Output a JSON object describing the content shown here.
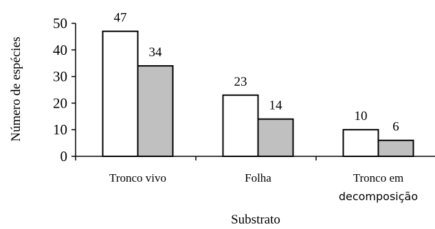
{
  "chart_data": {
    "type": "bar",
    "title": "",
    "xlabel": "Substrato",
    "ylabel": "Número de espécies",
    "ylim": [
      0,
      50
    ],
    "yticks": [
      0,
      10,
      20,
      30,
      40,
      50
    ],
    "categories": [
      {
        "lines": [
          "Tronco vivo"
        ]
      },
      {
        "lines": [
          "Folha"
        ]
      },
      {
        "lines": [
          "Tronco em",
          "decomposição"
        ]
      }
    ],
    "series": [
      {
        "values": [
          47,
          23,
          10
        ],
        "color": "#ffffff"
      },
      {
        "values": [
          34,
          14,
          6
        ],
        "color": "#c0c0c0"
      }
    ],
    "data_labels": true,
    "grid": false,
    "legend": "none"
  }
}
